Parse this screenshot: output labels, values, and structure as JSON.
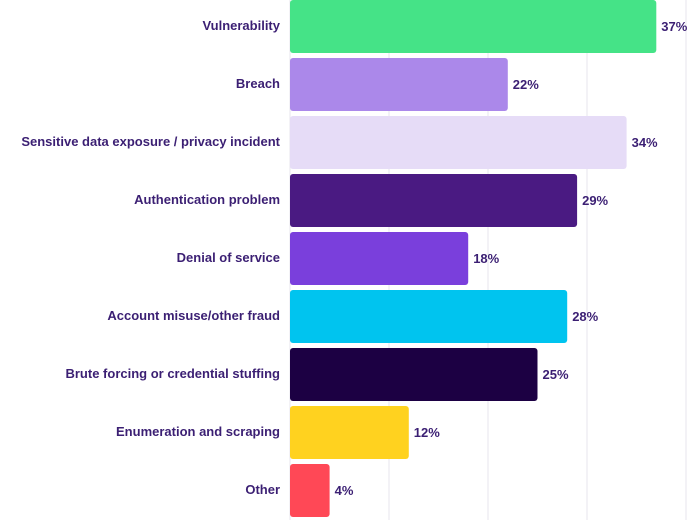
{
  "chart_data": {
    "type": "bar",
    "orientation": "horizontal",
    "title": "",
    "xlabel": "",
    "ylabel": "",
    "value_suffix": "%",
    "xlim": [
      0,
      40
    ],
    "grid": true,
    "categories": [
      "Vulnerability",
      "Breach",
      "Sensitive data exposure / privacy incident",
      "Authentication problem",
      "Denial of service",
      "Account misuse/other fraud",
      "Brute forcing or credential stuffing",
      "Enumeration and scraping",
      "Other"
    ],
    "values": [
      37,
      22,
      34,
      29,
      18,
      28,
      25,
      12,
      4
    ],
    "value_labels": [
      "37%",
      "22%",
      "34%",
      "29%",
      "18%",
      "28%",
      "25%",
      "12%",
      "4%"
    ],
    "colors": [
      "#45e387",
      "#ab88ea",
      "#e6dcf7",
      "#4a1a82",
      "#7a3fdc",
      "#00c4ef",
      "#1c0043",
      "#ffd21f",
      "#ff4856"
    ]
  }
}
